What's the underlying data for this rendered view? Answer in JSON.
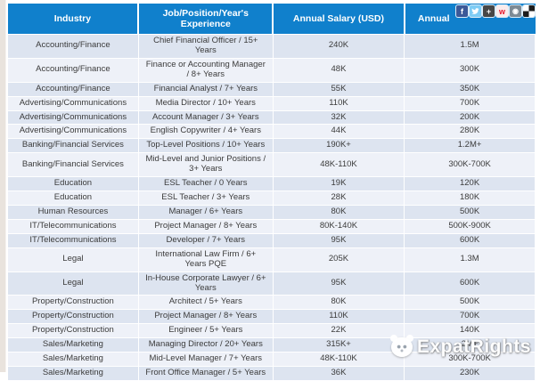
{
  "table": {
    "columns": [
      {
        "label": "Industry"
      },
      {
        "label": "Job/Position/Year's Experience"
      },
      {
        "label": "Annual Salary (USD)"
      },
      {
        "label": "Annual"
      }
    ],
    "rows": [
      {
        "industry": "Accounting/Finance",
        "job": "Chief Financial Officer / 15+ Years",
        "usd": "240K",
        "annual": "1.5M"
      },
      {
        "industry": "Accounting/Finance",
        "job": "Finance or Accounting Manager / 8+ Years",
        "usd": "48K",
        "annual": "300K"
      },
      {
        "industry": "Accounting/Finance",
        "job": "Financial Analyst / 7+ Years",
        "usd": "55K",
        "annual": "350K"
      },
      {
        "industry": "Advertising/Communications",
        "job": "Media Director / 10+ Years",
        "usd": "110K",
        "annual": "700K"
      },
      {
        "industry": "Advertising/Communications",
        "job": "Account Manager / 3+ Years",
        "usd": "32K",
        "annual": "200K"
      },
      {
        "industry": "Advertising/Communications",
        "job": "English Copywriter / 4+ Years",
        "usd": "44K",
        "annual": "280K"
      },
      {
        "industry": "Banking/Financial Services",
        "job": "Top-Level Positions / 10+ Years",
        "usd": "190K+",
        "annual": "1.2M+"
      },
      {
        "industry": "Banking/Financial Services",
        "job": "Mid-Level and Junior Positions / 3+ Years",
        "usd": "48K-110K",
        "annual": "300K-700K"
      },
      {
        "industry": "Education",
        "job": "ESL Teacher / 0 Years",
        "usd": "19K",
        "annual": "120K"
      },
      {
        "industry": "Education",
        "job": "ESL Teacher / 3+ Years",
        "usd": "28K",
        "annual": "180K"
      },
      {
        "industry": "Human Resources",
        "job": "Manager / 6+ Years",
        "usd": "80K",
        "annual": "500K"
      },
      {
        "industry": "IT/Telecommunications",
        "job": "Project Manager / 8+ Years",
        "usd": "80K-140K",
        "annual": "500K-900K"
      },
      {
        "industry": "IT/Telecommunications",
        "job": "Developer / 7+ Years",
        "usd": "95K",
        "annual": "600K"
      },
      {
        "industry": "Legal",
        "job": "International Law Firm / 6+ Years PQE",
        "usd": "205K",
        "annual": "1.3M"
      },
      {
        "industry": "Legal",
        "job": "In-House Corporate Lawyer / 6+ Years",
        "usd": "95K",
        "annual": "600K"
      },
      {
        "industry": "Property/Construction",
        "job": "Architect / 5+ Years",
        "usd": "80K",
        "annual": "500K"
      },
      {
        "industry": "Property/Construction",
        "job": "Project Manager / 8+ Years",
        "usd": "110K",
        "annual": "700K"
      },
      {
        "industry": "Property/Construction",
        "job": "Engineer / 5+ Years",
        "usd": "22K",
        "annual": "140K"
      },
      {
        "industry": "Sales/Marketing",
        "job": "Managing Director / 20+ Years",
        "usd": "315K+",
        "annual": "2M+"
      },
      {
        "industry": "Sales/Marketing",
        "job": "Mid-Level Manager / 7+ Years",
        "usd": "48K-110K",
        "annual": "300K-700K"
      },
      {
        "industry": "Sales/Marketing",
        "job": "Front Office Manager / 5+ Years",
        "usd": "36K",
        "annual": "230K"
      }
    ]
  },
  "share_bar": {
    "facebook_glyph": "f",
    "plus_glyph": "+",
    "weibo_glyph": "w",
    "camera_glyph": "◉"
  },
  "watermark": {
    "text": "ExpatRights"
  },
  "colors": {
    "header_bg": "#1080cc",
    "row_odd": "#dde4f0",
    "row_even": "#eef1f8",
    "body_text": "#3b3b3b"
  }
}
